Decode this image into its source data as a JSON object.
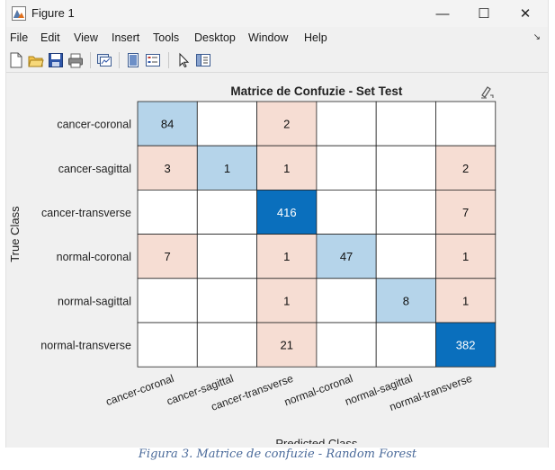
{
  "window": {
    "title": "Figure 1",
    "controls": {
      "minimize": "—",
      "maximize": "☐",
      "close": "✕"
    },
    "icons": {
      "app": "matlab-figure-icon"
    }
  },
  "menu": {
    "items": [
      "File",
      "Edit",
      "View",
      "Insert",
      "Tools",
      "Desktop",
      "Window",
      "Help"
    ],
    "overflow": "↘"
  },
  "toolbar": {
    "buttons": [
      "new-figure-icon",
      "open-file-icon",
      "save-icon",
      "print-icon",
      "link-plot-icon",
      "hide-plot-tools-icon",
      "insert-legend-icon",
      "pointer-icon",
      "property-editor-icon"
    ]
  },
  "chart_data": {
    "type": "heatmap",
    "title": "Matrice de Confuzie - Set Test",
    "xlabel": "Predicted Class",
    "ylabel": "True Class",
    "rows": [
      "cancer-coronal",
      "cancer-sagittal",
      "cancer-transverse",
      "normal-coronal",
      "normal-sagittal",
      "normal-transverse"
    ],
    "columns": [
      "cancer-coronal",
      "cancer-sagittal",
      "cancer-transverse",
      "normal-coronal",
      "normal-sagittal",
      "normal-transverse"
    ],
    "values": [
      [
        84,
        0,
        2,
        0,
        0,
        0
      ],
      [
        3,
        1,
        1,
        0,
        0,
        2
      ],
      [
        0,
        0,
        416,
        0,
        0,
        7
      ],
      [
        7,
        0,
        1,
        47,
        0,
        1
      ],
      [
        0,
        0,
        1,
        0,
        8,
        1
      ],
      [
        0,
        0,
        21,
        0,
        0,
        382
      ]
    ],
    "zero_shown_as": "",
    "colors": {
      "diagonal_strong": "#0a6fbd",
      "diagonal_light": "#b5d4ea",
      "offdiag_light": "#f6ddd3",
      "empty": "#ffffff",
      "grid": "#222222",
      "text_dark": "#111111",
      "text_light": "#ffffff"
    }
  },
  "caption": "Figura 3. Matrice de confuzie - Random Forest"
}
